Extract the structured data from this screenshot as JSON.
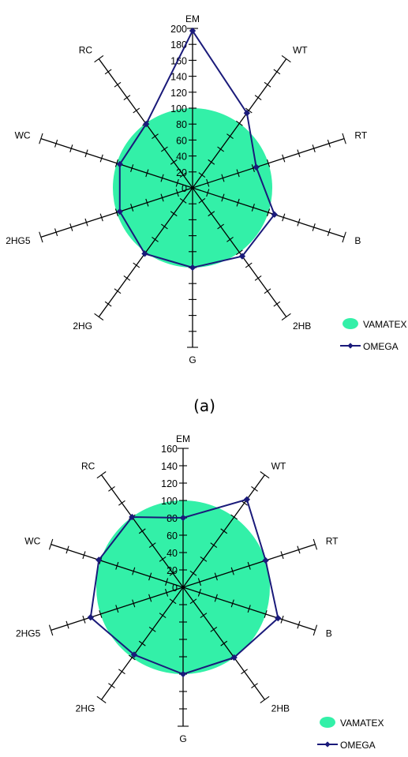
{
  "colors": {
    "vamatex": "#33f0a8",
    "omega": "#1a1a7a",
    "axis": "#000000"
  },
  "chart_data": [
    {
      "type": "radar",
      "caption": "(a)",
      "categories": [
        "EM",
        "WT",
        "RT",
        "B",
        "2HB",
        "G",
        "2HG",
        "2HG5",
        "WC",
        "RC"
      ],
      "rlim": [
        0,
        200
      ],
      "ticks": [
        0,
        20,
        40,
        60,
        80,
        100,
        120,
        140,
        160,
        180,
        200
      ],
      "tick_labels": [
        "0",
        "20",
        "40",
        "60",
        "80",
        "100",
        "120",
        "140",
        "160",
        "180",
        "200"
      ],
      "grid": false,
      "legend": "bottom-right",
      "series": [
        {
          "name": "VAMATEX",
          "style": "filled-area",
          "values": [
            100,
            100,
            100,
            100,
            100,
            100,
            100,
            100,
            100,
            100
          ]
        },
        {
          "name": "OMEGA",
          "style": "line-marker",
          "values": [
            197,
            116,
            84,
            108,
            106,
            100,
            102,
            96,
            96,
            99
          ]
        }
      ]
    },
    {
      "type": "radar",
      "caption": "",
      "categories": [
        "EM",
        "WT",
        "RT",
        "B",
        "2HB",
        "G",
        "2HG",
        "2HG5",
        "WC",
        "RC"
      ],
      "rlim": [
        0,
        160
      ],
      "ticks": [
        0,
        20,
        40,
        60,
        80,
        100,
        120,
        140,
        160
      ],
      "tick_labels": [
        "0",
        "20",
        "40",
        "60",
        "80",
        "100",
        "120",
        "140",
        "160"
      ],
      "grid": false,
      "legend": "bottom-right",
      "series": [
        {
          "name": "VAMATEX",
          "style": "filled-area",
          "values": [
            100,
            100,
            100,
            100,
            100,
            100,
            100,
            100,
            100,
            100
          ]
        },
        {
          "name": "OMEGA",
          "style": "line-marker",
          "values": [
            80,
            125,
            100,
            115,
            100,
            100,
            96,
            112,
            102,
            100
          ]
        }
      ]
    }
  ]
}
